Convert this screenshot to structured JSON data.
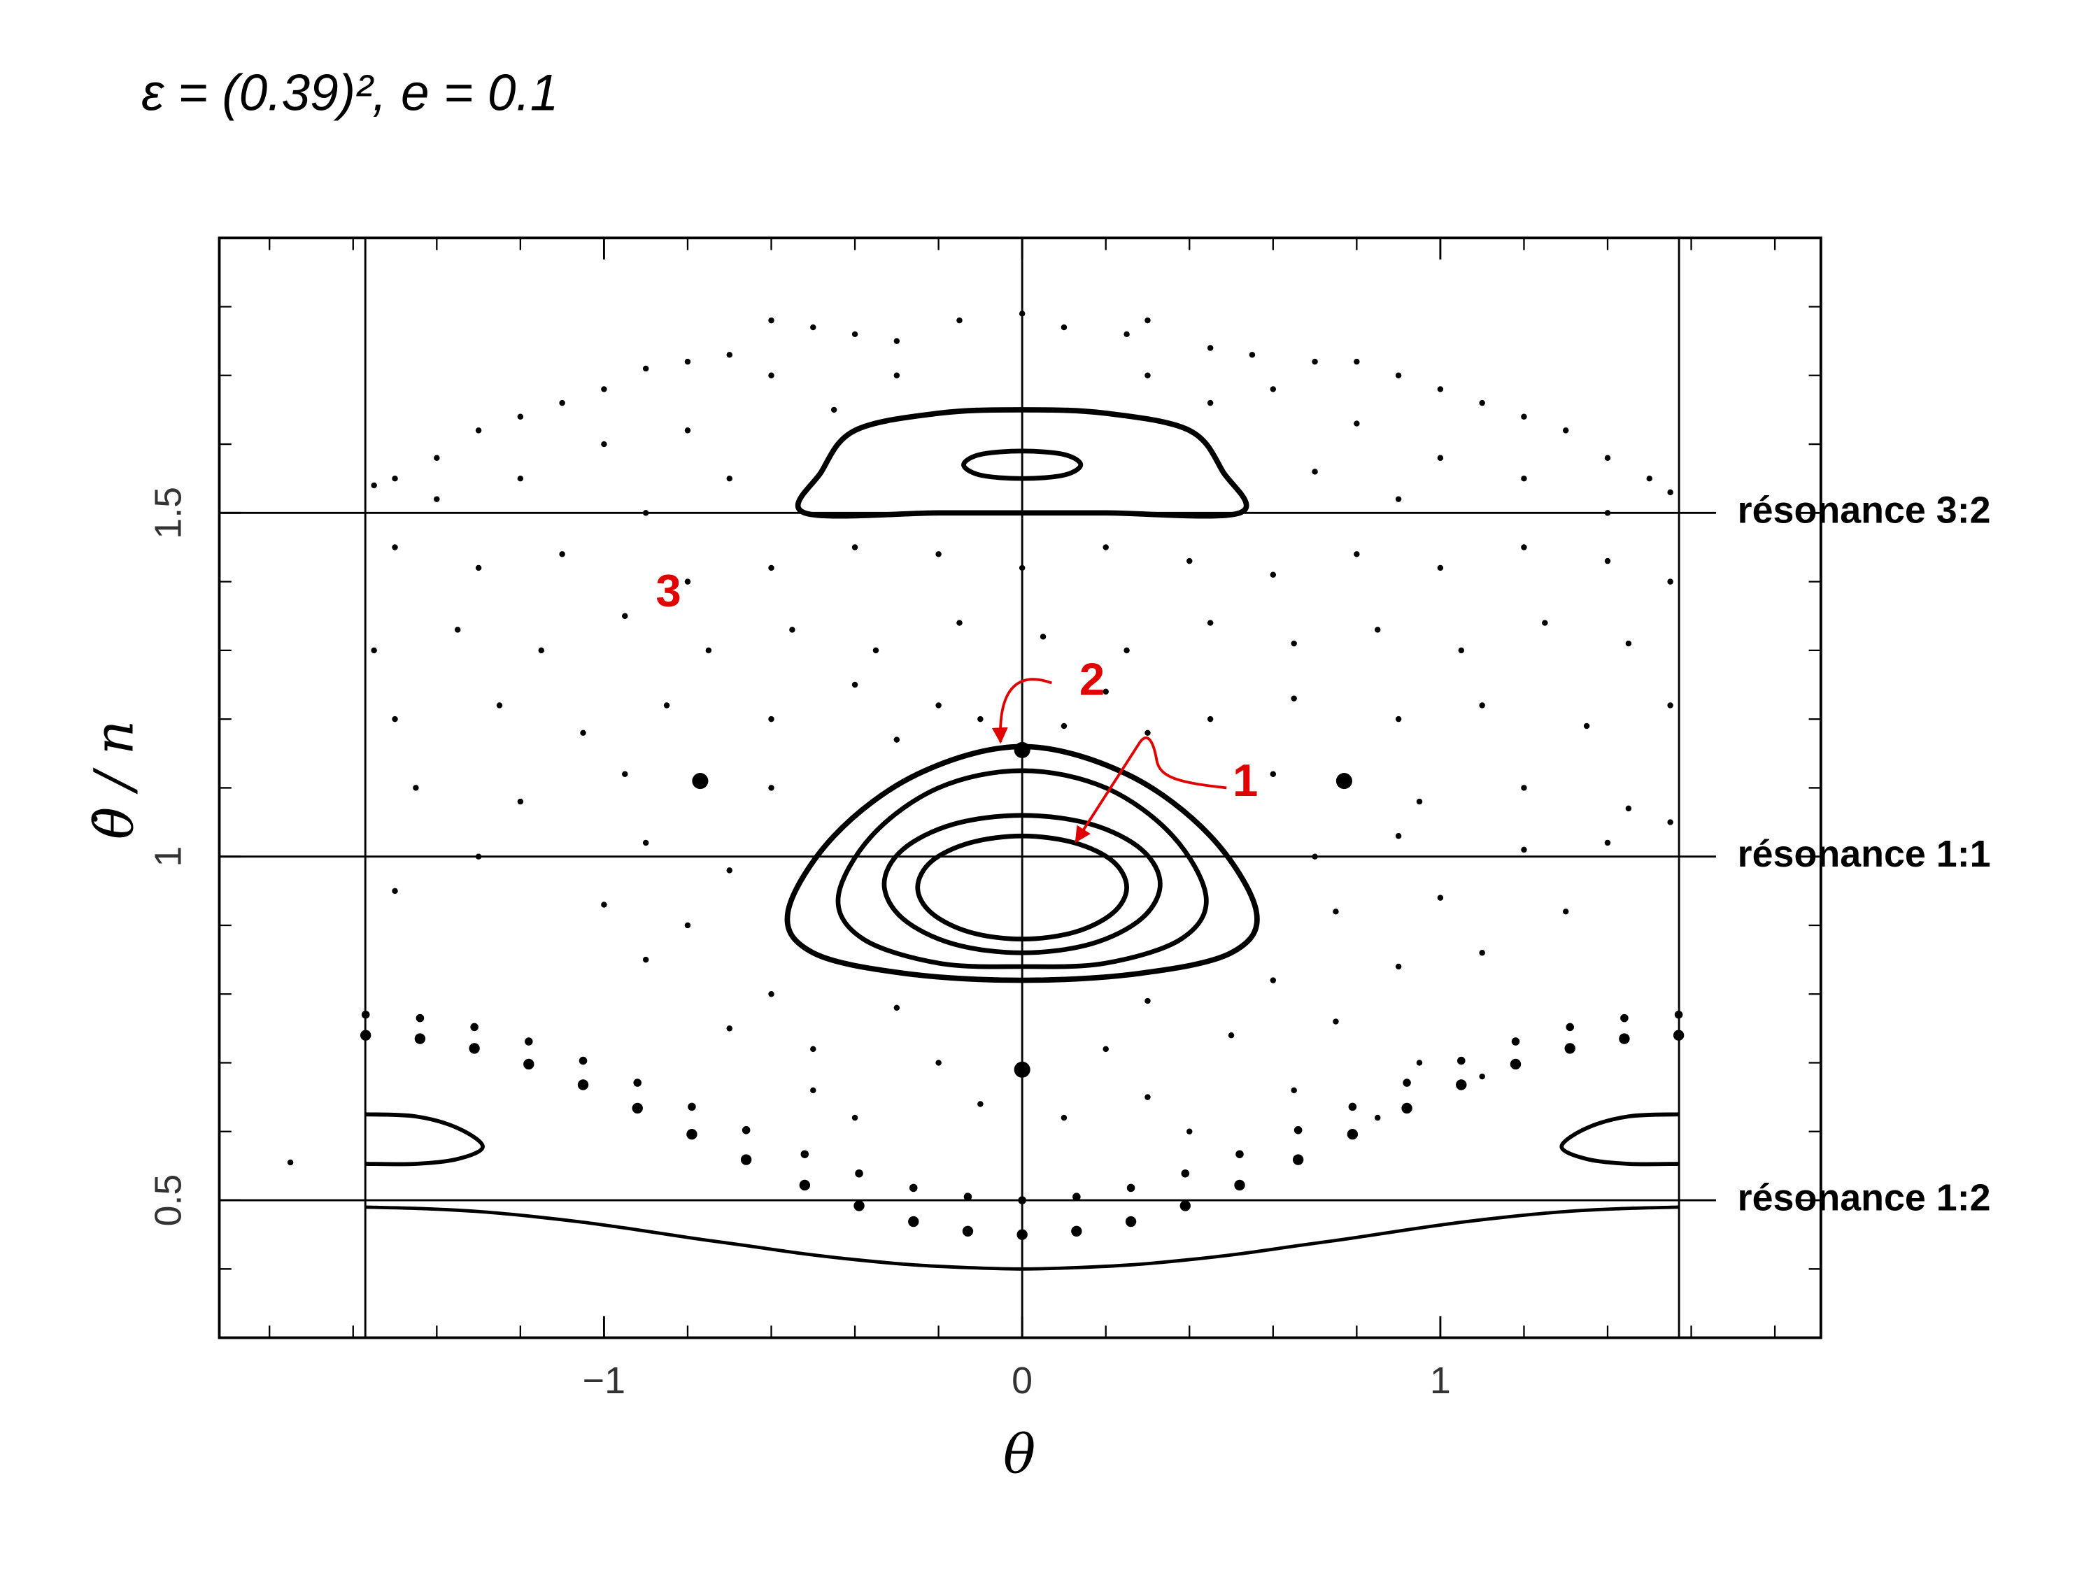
{
  "chart_data": {
    "type": "scatter",
    "title": "ε = (0.39)², e = 0.1",
    "x_label": "θ",
    "y_label": "θ̇ / n",
    "xlim": [
      -1.92,
      1.91
    ],
    "ylim": [
      0.3,
      1.9
    ],
    "xticks": [
      {
        "value": -1,
        "label": "−1"
      },
      0,
      1
    ],
    "yticks": [
      0.5,
      1,
      1.5
    ],
    "xminorticks": [
      -1.8,
      -1.6,
      -1.4,
      -1.2,
      -0.8,
      -0.6,
      -0.4,
      -0.2,
      0.2,
      0.4,
      0.6,
      0.8,
      1.2,
      1.4,
      1.6,
      1.8
    ],
    "yminorticks": [
      0.4,
      0.6,
      0.7,
      0.8,
      0.9,
      1.1,
      1.2,
      1.3,
      1.4,
      1.6,
      1.7,
      1.8
    ],
    "vlines": [
      -1.5708,
      0,
      1.5708
    ],
    "hlines": [
      {
        "value": 1.5,
        "label": "résonance 3:2"
      },
      {
        "value": 1,
        "label": "résonance 1:1"
      },
      {
        "value": 0.5,
        "label": "résonance 1:2"
      }
    ],
    "annotations": [
      "1",
      "2",
      "3"
    ],
    "series": [
      {
        "mode": "points",
        "color": "#000000",
        "size": 2.2,
        "x": [
          -0.6,
          -0.5,
          -0.4,
          -0.3,
          -0.15,
          0,
          0.1,
          0.25,
          0.3,
          0.45,
          0.55,
          0.7,
          0.8,
          -0.7,
          -0.8,
          -0.9,
          -1.0,
          -1.1,
          -1.2,
          -1.3,
          -1.4,
          -1.5,
          -1.55,
          0.9,
          1.0,
          1.1,
          1.2,
          1.3,
          1.4,
          1.5,
          1.55,
          -0.6,
          -0.45,
          -0.3,
          0.3,
          0.45,
          0.6,
          -0.8,
          0.8,
          -1.0,
          1.0,
          -1.2,
          1.2,
          -1.4,
          1.4,
          -0.7,
          0.7,
          -0.9,
          0.9,
          -1.5,
          -1.3,
          -1.1,
          -0.8,
          -0.6,
          -0.4,
          -0.2,
          0,
          0.2,
          0.4,
          0.6,
          0.8,
          1.0,
          1.2,
          1.4,
          1.55,
          -1.55,
          -1.35,
          -1.15,
          -0.95,
          -0.75,
          -0.55,
          -0.35,
          -0.15,
          0.05,
          0.25,
          0.45,
          0.65,
          0.85,
          1.05,
          1.25,
          1.45,
          -1.5,
          -1.25,
          -1.05,
          -0.85,
          -0.6,
          -0.4,
          -0.2,
          0.2,
          0.45,
          0.65,
          0.9,
          1.1,
          1.35,
          1.55,
          -1.45,
          -1.2,
          -0.95,
          -0.6,
          0.6,
          0.95,
          1.2,
          1.45,
          1.55,
          -1.3,
          -0.9,
          -0.7,
          0.7,
          0.9,
          1.2,
          1.4,
          -1.5,
          -1.0,
          -0.8,
          0.75,
          1.0,
          1.3,
          -0.9,
          -0.6,
          -0.3,
          0.3,
          0.6,
          0.9,
          1.1,
          -0.7,
          -0.5,
          -0.2,
          0.2,
          0.5,
          0.75,
          0.95,
          -0.5,
          -0.4,
          -0.1,
          0.1,
          0.3,
          0.4,
          0.65,
          0.85,
          1.1,
          -0.3,
          0.3,
          -0.1,
          0.1,
          -1.75
        ],
        "values": [
          1.78,
          1.77,
          1.76,
          1.75,
          1.78,
          1.79,
          1.77,
          1.76,
          1.78,
          1.74,
          1.73,
          1.72,
          1.72,
          1.73,
          1.72,
          1.71,
          1.68,
          1.66,
          1.64,
          1.62,
          1.58,
          1.55,
          1.54,
          1.7,
          1.68,
          1.66,
          1.64,
          1.62,
          1.58,
          1.55,
          1.53,
          1.7,
          1.65,
          1.7,
          1.7,
          1.66,
          1.68,
          1.62,
          1.63,
          1.6,
          1.58,
          1.55,
          1.55,
          1.52,
          1.5,
          1.55,
          1.56,
          1.5,
          1.52,
          1.45,
          1.42,
          1.44,
          1.4,
          1.42,
          1.45,
          1.44,
          1.42,
          1.45,
          1.43,
          1.41,
          1.44,
          1.42,
          1.45,
          1.43,
          1.4,
          1.3,
          1.33,
          1.3,
          1.35,
          1.3,
          1.33,
          1.3,
          1.34,
          1.32,
          1.3,
          1.34,
          1.31,
          1.33,
          1.3,
          1.34,
          1.31,
          1.2,
          1.22,
          1.18,
          1.22,
          1.2,
          1.25,
          1.22,
          1.24,
          1.2,
          1.23,
          1.2,
          1.22,
          1.19,
          1.22,
          1.1,
          1.08,
          1.12,
          1.1,
          1.12,
          1.08,
          1.1,
          1.07,
          1.05,
          1.0,
          1.02,
          0.98,
          1.0,
          1.03,
          1.01,
          1.02,
          0.95,
          0.93,
          0.9,
          0.92,
          0.94,
          0.92,
          0.85,
          0.8,
          0.78,
          0.79,
          0.82,
          0.84,
          0.86,
          0.75,
          0.72,
          0.7,
          0.72,
          0.74,
          0.76,
          0.7,
          0.66,
          0.62,
          0.64,
          0.62,
          0.65,
          0.6,
          0.66,
          0.62,
          0.68,
          1.17,
          1.18,
          1.2,
          1.19,
          0.555
        ]
      },
      {
        "mode": "closed",
        "color": "#000000",
        "size": 3.5,
        "x": [
          0.25,
          0.217,
          0.125,
          0,
          -0.125,
          -0.217,
          -0.25,
          -0.217,
          -0.125,
          0,
          0.125,
          0.217
        ],
        "values": [
          0.955,
          0.993,
          1.02,
          1.03,
          1.02,
          0.993,
          0.955,
          0.918,
          0.89,
          0.88,
          0.89,
          0.918
        ]
      },
      {
        "mode": "closed",
        "color": "#000000",
        "size": 3.5,
        "x": [
          0.33,
          0.286,
          0.165,
          0,
          -0.165,
          -0.286,
          -0.33,
          -0.286,
          -0.165,
          0,
          0.165,
          0.286
        ],
        "values": [
          0.96,
          1.01,
          1.047,
          1.06,
          1.047,
          1.01,
          0.96,
          0.91,
          0.873,
          0.86,
          0.873,
          0.91
        ]
      },
      {
        "mode": "closed",
        "color": "#000000",
        "size": 3.5,
        "x": [
          0.44,
          0.36,
          0.2,
          0,
          -0.2,
          -0.36,
          -0.44,
          -0.38,
          -0.2,
          0,
          0.2,
          0.38
        ],
        "values": [
          0.94,
          1.03,
          1.1,
          1.125,
          1.1,
          1.03,
          0.94,
          0.88,
          0.845,
          0.84,
          0.845,
          0.88
        ]
      },
      {
        "mode": "closed",
        "color": "#000000",
        "size": 4,
        "x": [
          0.56,
          0.45,
          0.25,
          0,
          -0.25,
          -0.45,
          -0.56,
          -0.5,
          -0.28,
          0,
          0.28,
          0.5
        ],
        "values": [
          0.92,
          1.03,
          1.12,
          1.16,
          1.12,
          1.03,
          0.92,
          0.86,
          0.83,
          0.82,
          0.83,
          0.86
        ]
      },
      {
        "mode": "closed",
        "color": "#000000",
        "size": 4,
        "x": [
          0.52,
          0.48,
          0.4,
          0.2,
          0,
          -0.2,
          -0.4,
          -0.48,
          -0.52,
          -0.2,
          0,
          0.2
        ],
        "values": [
          1.5,
          1.56,
          1.62,
          1.645,
          1.65,
          1.645,
          1.62,
          1.56,
          1.5,
          1.5,
          1.5,
          1.5
        ]
      },
      {
        "mode": "closed",
        "color": "#000000",
        "size": 3.5,
        "x": [
          0.14,
          0.1,
          0,
          -0.1,
          -0.14,
          -0.1,
          0,
          0.1
        ],
        "values": [
          1.57,
          1.585,
          1.59,
          1.585,
          1.57,
          1.555,
          1.55,
          1.555
        ]
      },
      {
        "mode": "points",
        "color": "#000000",
        "size": 3,
        "x": [
          -1.57,
          -1.44,
          -1.31,
          -1.18,
          -1.05,
          -0.92,
          -0.79,
          -0.66,
          -0.52,
          -0.39,
          -0.26,
          -0.13,
          0,
          0.13,
          0.26,
          0.39,
          0.52,
          0.66,
          0.79,
          0.92,
          1.05,
          1.18,
          1.31,
          1.44,
          1.57
        ],
        "values": [
          0.77,
          0.765,
          0.752,
          0.731,
          0.703,
          0.671,
          0.636,
          0.602,
          0.567,
          0.539,
          0.518,
          0.505,
          0.5,
          0.505,
          0.518,
          0.539,
          0.567,
          0.602,
          0.636,
          0.671,
          0.703,
          0.731,
          0.752,
          0.765,
          0.77
        ]
      },
      {
        "mode": "points",
        "color": "#000000",
        "size": 4,
        "x": [
          -1.57,
          -1.44,
          -1.31,
          -1.18,
          -1.05,
          -0.92,
          -0.79,
          -0.66,
          -0.52,
          -0.39,
          -0.26,
          -0.13,
          0,
          0.13,
          0.26,
          0.39,
          0.52,
          0.66,
          0.79,
          0.92,
          1.05,
          1.18,
          1.31,
          1.44,
          1.57
        ],
        "values": [
          0.74,
          0.735,
          0.721,
          0.698,
          0.668,
          0.634,
          0.596,
          0.559,
          0.522,
          0.492,
          0.469,
          0.455,
          0.45,
          0.455,
          0.469,
          0.492,
          0.522,
          0.559,
          0.596,
          0.634,
          0.668,
          0.698,
          0.721,
          0.735,
          0.74
        ]
      },
      {
        "mode": "line",
        "color": "#000000",
        "size": 2.5,
        "x": [
          -1.57,
          -1.44,
          -1.31,
          -1.18,
          -1.05,
          -0.92,
          -0.79,
          -0.66,
          -0.52,
          -0.39,
          -0.26,
          -0.13,
          0,
          0.13,
          0.26,
          0.39,
          0.52,
          0.66,
          0.79,
          0.92,
          1.05,
          1.18,
          1.31,
          1.44,
          1.57
        ],
        "values": [
          0.49,
          0.488,
          0.484,
          0.477,
          0.468,
          0.457,
          0.445,
          0.434,
          0.422,
          0.413,
          0.406,
          0.402,
          0.4,
          0.402,
          0.406,
          0.413,
          0.422,
          0.434,
          0.445,
          0.457,
          0.468,
          0.477,
          0.484,
          0.488,
          0.49
        ]
      },
      {
        "mode": "line",
        "color": "#000000",
        "size": 3,
        "x": [
          -1.57,
          -1.45,
          -1.35,
          -1.29,
          -1.35,
          -1.45,
          -1.57
        ],
        "values": [
          0.625,
          0.622,
          0.605,
          0.578,
          0.56,
          0.553,
          0.553
        ]
      },
      {
        "mode": "line",
        "color": "#000000",
        "size": 3,
        "x": [
          1.57,
          1.45,
          1.35,
          1.29,
          1.35,
          1.45,
          1.57
        ],
        "values": [
          0.625,
          0.622,
          0.605,
          0.578,
          0.56,
          0.553,
          0.553
        ]
      },
      {
        "mode": "points",
        "color": "#000000",
        "size": 6,
        "x": [
          -0.77,
          0.77,
          0,
          0
        ],
        "values": [
          1.11,
          1.11,
          0.69,
          1.155
        ]
      }
    ]
  }
}
